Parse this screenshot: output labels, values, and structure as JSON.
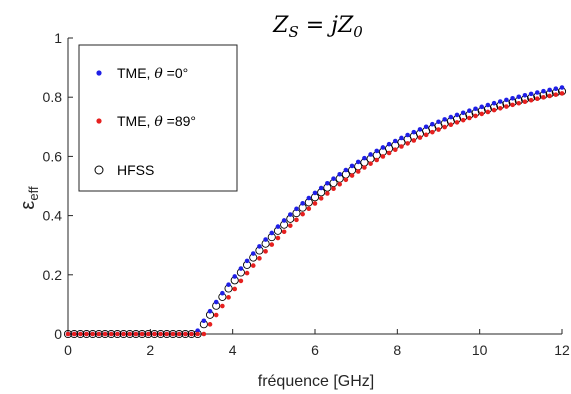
{
  "chart_data": {
    "type": "scatter",
    "title": {
      "base": "Z",
      "sub": "S",
      "mid": " = jZ",
      "sub2": "0"
    },
    "xlabel": "fréquence [GHz]",
    "ylabel": {
      "base": "ε",
      "sub": "eff"
    },
    "xlim": [
      0,
      12
    ],
    "ylim": [
      0,
      1
    ],
    "xticks": [
      "0",
      "2",
      "4",
      "6",
      "8",
      "10",
      "12"
    ],
    "yticks": [
      "0",
      "0.2",
      "0.4",
      "0.6",
      "0.8",
      "1"
    ],
    "xtick_values": [
      0,
      2,
      4,
      6,
      8,
      10,
      12
    ],
    "ytick_values": [
      0,
      0.2,
      0.4,
      0.6,
      0.8,
      1
    ],
    "grid": false,
    "legend_position": "top-left",
    "series": [
      {
        "name": "TME, θ =0°",
        "legend": {
          "prefix": "TME, ",
          "theta": "θ",
          "suffix": " =0°"
        },
        "marker": "dot",
        "color": "#1f1fe6",
        "cutoff": 3.1,
        "ymax": 0.94,
        "tau": 4.1
      },
      {
        "name": "TME, θ =89°",
        "legend": {
          "prefix": "TME, ",
          "theta": "θ",
          "suffix": " =89°"
        },
        "marker": "dot",
        "color": "#e6201f",
        "cutoff": 3.3,
        "ymax": 0.93,
        "tau": 4.2
      },
      {
        "name": "HFSS",
        "legend": {
          "prefix": "HFSS",
          "theta": "",
          "suffix": ""
        },
        "marker": "circle",
        "color": "#000000",
        "cutoff": 3.15,
        "ymax": 0.93,
        "tau": 4.15
      }
    ],
    "x_step": 0.15
  }
}
